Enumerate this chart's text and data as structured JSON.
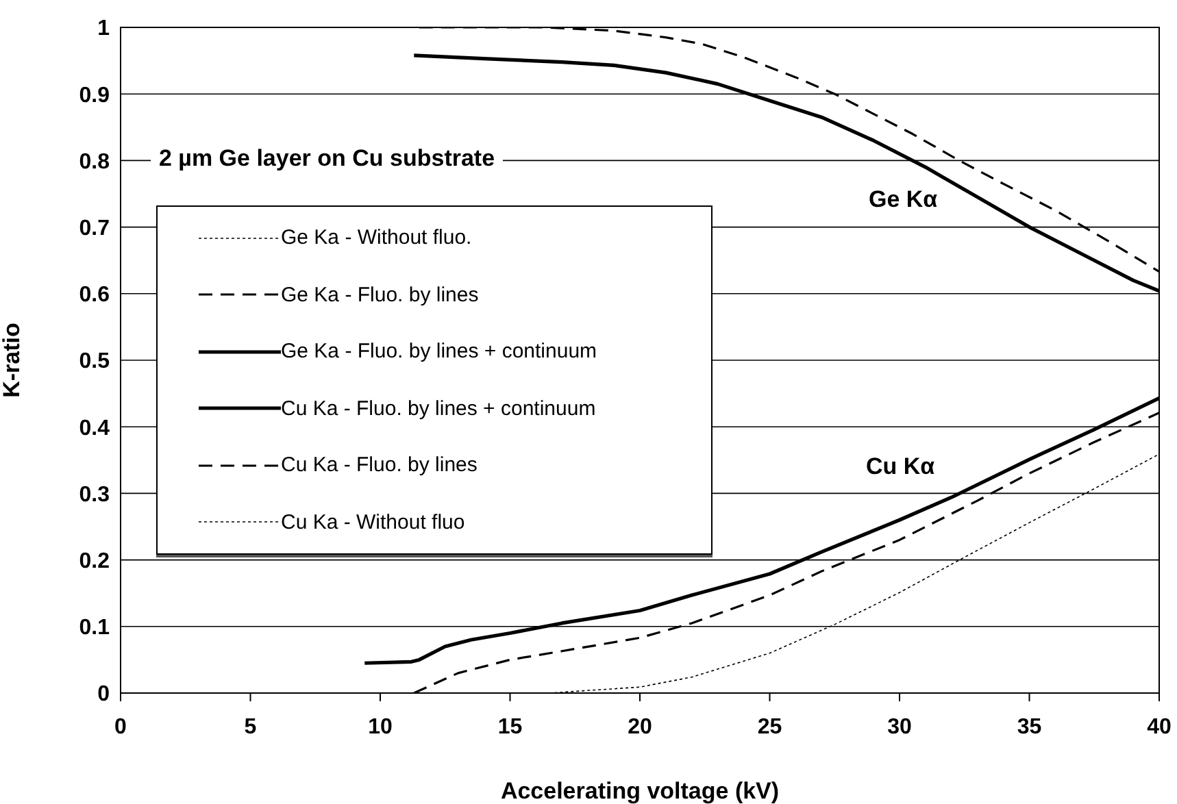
{
  "chart_data": {
    "type": "line",
    "xlabel": "Accelerating voltage (kV)",
    "ylabel": "K-ratio",
    "xlim": [
      0,
      40
    ],
    "xticks": [
      0,
      5,
      10,
      15,
      20,
      25,
      30,
      35,
      40
    ],
    "ylim": [
      0,
      1
    ],
    "yticks": [
      0,
      0.1,
      0.2,
      0.3,
      0.4,
      0.5,
      0.6,
      0.7,
      0.8,
      0.9,
      1
    ],
    "grid": "y",
    "legend": "left",
    "marker": "none",
    "annotations": [
      "2 µm Ge layer on Cu substrate",
      "Ge Kα",
      "Cu Kα"
    ],
    "series": [
      {
        "name": "Ge Ka - Without fluo.",
        "color": "#000000",
        "line_style": "dotted"
      },
      {
        "name": "Ge Ka - Fluo. by lines",
        "color": "#000000",
        "line_style": "dashed",
        "x": [
          11.5,
          16.3,
          19,
          21,
          22.4,
          24,
          26,
          27.5,
          29,
          30.5,
          32.3,
          34,
          36,
          38,
          40
        ],
        "values": [
          1,
          1,
          0.995,
          0.985,
          0.975,
          0.955,
          0.925,
          0.9,
          0.87,
          0.84,
          0.8,
          0.765,
          0.725,
          0.68,
          0.633
        ]
      },
      {
        "name": "Ge Ka - Fluo. by lines + continuum",
        "color": "#000000",
        "line_style": "solid",
        "x": [
          11.3,
          14,
          17,
          19,
          21,
          23,
          25,
          27,
          29,
          31,
          33,
          35,
          37,
          39,
          40
        ],
        "values": [
          0.958,
          0.953,
          0.948,
          0.943,
          0.932,
          0.915,
          0.89,
          0.865,
          0.83,
          0.79,
          0.745,
          0.7,
          0.66,
          0.62,
          0.604
        ]
      },
      {
        "name": "Cu Ka - Fluo. by lines + continuum",
        "color": "#000000",
        "line_style": "solid",
        "x": [
          9.4,
          11.2,
          11.5,
          12.5,
          13.5,
          15,
          17,
          20,
          22,
          25,
          27,
          30,
          32,
          35,
          37.5,
          40
        ],
        "values": [
          0.045,
          0.047,
          0.05,
          0.07,
          0.08,
          0.09,
          0.105,
          0.124,
          0.147,
          0.179,
          0.212,
          0.26,
          0.294,
          0.351,
          0.396,
          0.443
        ]
      },
      {
        "name": "Cu Ka - Fluo. by lines",
        "color": "#000000",
        "line_style": "dashed",
        "x": [
          11.3,
          13,
          15,
          17,
          20,
          22,
          25,
          27,
          30,
          33,
          35,
          37.5,
          40
        ],
        "values": [
          0,
          0.03,
          0.05,
          0.063,
          0.083,
          0.105,
          0.147,
          0.183,
          0.23,
          0.289,
          0.33,
          0.377,
          0.421
        ]
      },
      {
        "name": "Cu Ka - Without fluo",
        "color": "#000000",
        "line_style": "dotted",
        "x": [
          16.5,
          20,
          22,
          25,
          27.5,
          30,
          32.5,
          35,
          37.5,
          40
        ],
        "values": [
          0,
          0.009,
          0.024,
          0.06,
          0.103,
          0.151,
          0.204,
          0.256,
          0.307,
          0.359
        ]
      }
    ]
  }
}
